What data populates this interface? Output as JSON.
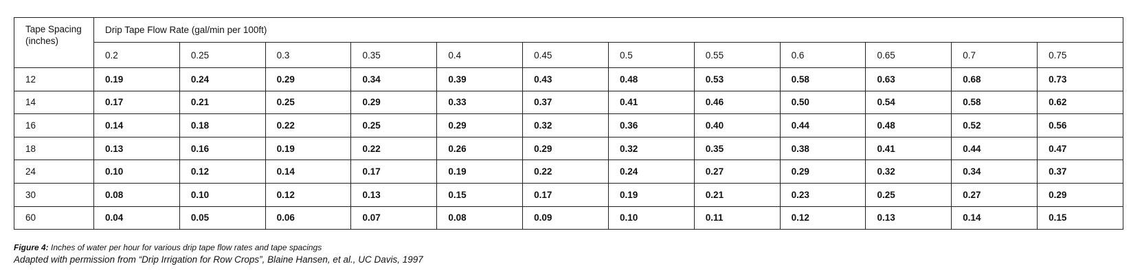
{
  "table": {
    "spacing_header": "Tape Spacing (inches)",
    "flow_header": "Drip Tape Flow Rate (gal/min per 100ft)",
    "flow_rates": [
      "0.2",
      "0.25",
      "0.3",
      "0.35",
      "0.4",
      "0.45",
      "0.5",
      "0.55",
      "0.6",
      "0.65",
      "0.7",
      "0.75"
    ],
    "rows": [
      {
        "spacing": "12",
        "values": [
          "0.19",
          "0.24",
          "0.29",
          "0.34",
          "0.39",
          "0.43",
          "0.48",
          "0.53",
          "0.58",
          "0.63",
          "0.68",
          "0.73"
        ]
      },
      {
        "spacing": "14",
        "values": [
          "0.17",
          "0.21",
          "0.25",
          "0.29",
          "0.33",
          "0.37",
          "0.41",
          "0.46",
          "0.50",
          "0.54",
          "0.58",
          "0.62"
        ]
      },
      {
        "spacing": "16",
        "values": [
          "0.14",
          "0.18",
          "0.22",
          "0.25",
          "0.29",
          "0.32",
          "0.36",
          "0.40",
          "0.44",
          "0.48",
          "0.52",
          "0.56"
        ]
      },
      {
        "spacing": "18",
        "values": [
          "0.13",
          "0.16",
          "0.19",
          "0.22",
          "0.26",
          "0.29",
          "0.32",
          "0.35",
          "0.38",
          "0.41",
          "0.44",
          "0.47"
        ]
      },
      {
        "spacing": "24",
        "values": [
          "0.10",
          "0.12",
          "0.14",
          "0.17",
          "0.19",
          "0.22",
          "0.24",
          "0.27",
          "0.29",
          "0.32",
          "0.34",
          "0.37"
        ]
      },
      {
        "spacing": "30",
        "values": [
          "0.08",
          "0.10",
          "0.12",
          "0.13",
          "0.15",
          "0.17",
          "0.19",
          "0.21",
          "0.23",
          "0.25",
          "0.27",
          "0.29"
        ]
      },
      {
        "spacing": "60",
        "values": [
          "0.04",
          "0.05",
          "0.06",
          "0.07",
          "0.08",
          "0.09",
          "0.10",
          "0.11",
          "0.12",
          "0.13",
          "0.14",
          "0.15"
        ]
      }
    ]
  },
  "caption": {
    "label": "Figure 4:",
    "text": " Inches of water per hour for various drip tape flow rates and tape spacings"
  },
  "source": "Adapted with permission from “Drip Irrigation for Row Crops”, Blaine Hansen, et al., UC Davis, 1997"
}
